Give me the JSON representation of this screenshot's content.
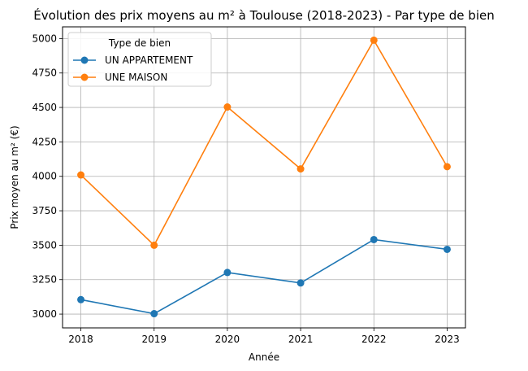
{
  "chart_data": {
    "type": "line",
    "title": "Évolution des prix moyens au m² à Toulouse (2018-2023) - Par type de bien",
    "xlabel": "Année",
    "ylabel": "Prix moyen au m² (€)",
    "x": [
      2018,
      2019,
      2020,
      2021,
      2022,
      2023
    ],
    "x_ticks": [
      "2018",
      "2019",
      "2020",
      "2021",
      "2022",
      "2023"
    ],
    "y_ticks": [
      3000,
      3250,
      3500,
      3750,
      4000,
      4250,
      4500,
      4750,
      5000
    ],
    "xlim": [
      2017.75,
      2023.25
    ],
    "ylim": [
      2900,
      5085
    ],
    "grid": true,
    "legend": {
      "title": "Type de bien",
      "placement": "upper-left"
    },
    "series": [
      {
        "name": "UN APPARTEMENT",
        "color": "#1f77b4",
        "values": [
          3105,
          3003,
          3302,
          3226,
          3541,
          3470
        ]
      },
      {
        "name": "UNE MAISON",
        "color": "#ff7f0e",
        "values": [
          4010,
          3500,
          4503,
          4054,
          4988,
          4070
        ]
      }
    ]
  }
}
